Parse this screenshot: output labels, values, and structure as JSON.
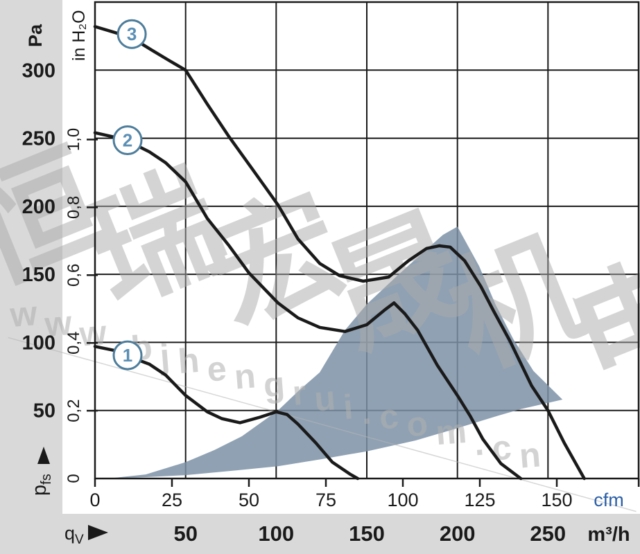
{
  "units": {
    "pressure_pa": "Pa",
    "pressure_inh2o": "in H₂O",
    "flow_cfm": "cfm",
    "flow_m3h": "m³/h",
    "p_main": "p",
    "p_sub": "fs",
    "q_main": "q",
    "q_sub": "V"
  },
  "watermark": {
    "cjk": "恒瑞宏晟机电",
    "url": "www.bjhengrui.com.cn"
  },
  "colors": {
    "background_gray": "#d9d9d9",
    "plot_white": "#ffffff",
    "line_black": "#1a1a1a",
    "region_blue": "#7b91a6",
    "circle_ring_blue": "#4d7d9b",
    "circle_number_blue": "#5b8fb5",
    "cfm_unit_blue": "#2b5fa7",
    "watermark_gray": "#ababab"
  },
  "chart_data": {
    "type": "line",
    "xlabel": "qV (airflow)",
    "ylabel": "pfs (static pressure)",
    "grid": true,
    "x_axes": [
      {
        "unit": "m³/h",
        "range": [
          0,
          300
        ],
        "ticks": [
          50,
          100,
          150,
          200,
          250
        ]
      },
      {
        "unit": "cfm",
        "range": [
          0,
          176.6
        ],
        "ticks": [
          0,
          25,
          50,
          75,
          100,
          125,
          150
        ],
        "extra_tick": 176.6,
        "cfm_to_m3h": 1.69901
      }
    ],
    "y_axes": [
      {
        "unit": "Pa",
        "range": [
          0,
          350
        ],
        "ticks": [
          300,
          250,
          200,
          150,
          100,
          50
        ]
      },
      {
        "unit": "in H₂O",
        "ticks": [
          {
            "label": "1,0",
            "pa": 249.0
          },
          {
            "label": "0,8",
            "pa": 199.2
          },
          {
            "label": "0,6",
            "pa": 149.4
          },
          {
            "label": "0,4",
            "pa": 99.6
          },
          {
            "label": "0,2",
            "pa": 49.8
          },
          {
            "label": "0",
            "pa": 0
          }
        ]
      }
    ],
    "x_grid_m3h": [
      50,
      100,
      150,
      200,
      250
    ],
    "y_grid_pa": [
      50,
      100,
      150,
      200,
      250,
      300
    ],
    "series": [
      {
        "name": "1",
        "label": {
          "text": "1",
          "q": 18,
          "pa": 90.5
        },
        "points": [
          [
            0,
            97
          ],
          [
            11,
            94
          ],
          [
            18,
            90
          ],
          [
            30,
            84
          ],
          [
            39,
            76
          ],
          [
            50,
            61
          ],
          [
            62,
            49
          ],
          [
            70,
            44
          ],
          [
            80,
            41
          ],
          [
            91,
            45
          ],
          [
            100,
            49
          ],
          [
            106,
            47
          ],
          [
            112,
            40
          ],
          [
            122,
            26
          ],
          [
            131,
            12
          ],
          [
            141,
            3
          ],
          [
            145,
            0
          ]
        ]
      },
      {
        "name": "2",
        "label": {
          "text": "2",
          "q": 18,
          "pa": 248.5
        },
        "points": [
          [
            0,
            254
          ],
          [
            10,
            251
          ],
          [
            18,
            248
          ],
          [
            30,
            240
          ],
          [
            39,
            232
          ],
          [
            50,
            218
          ],
          [
            62,
            191
          ],
          [
            74,
            171
          ],
          [
            85,
            151
          ],
          [
            101,
            129
          ],
          [
            112,
            118
          ],
          [
            124,
            111
          ],
          [
            138,
            108
          ],
          [
            150,
            113
          ],
          [
            160,
            124
          ],
          [
            165,
            129
          ],
          [
            171,
            121
          ],
          [
            178,
            109
          ],
          [
            189,
            83
          ],
          [
            200,
            61
          ],
          [
            207,
            46
          ],
          [
            214,
            29
          ],
          [
            224,
            11
          ],
          [
            235,
            0
          ]
        ]
      },
      {
        "name": "3",
        "label": {
          "text": "3",
          "q": 20.3,
          "pa": 326.5
        },
        "points": [
          [
            0,
            332
          ],
          [
            10,
            328
          ],
          [
            20,
            324
          ],
          [
            31,
            315
          ],
          [
            41,
            307
          ],
          [
            50,
            300
          ],
          [
            62,
            275
          ],
          [
            74,
            251
          ],
          [
            87,
            227
          ],
          [
            101,
            201
          ],
          [
            112,
            176
          ],
          [
            124,
            158
          ],
          [
            135,
            149
          ],
          [
            148,
            145
          ],
          [
            162,
            148
          ],
          [
            173,
            160
          ],
          [
            183,
            169
          ],
          [
            190,
            171
          ],
          [
            196,
            170
          ],
          [
            204,
            160
          ],
          [
            213,
            141
          ],
          [
            220,
            123
          ],
          [
            229,
            101
          ],
          [
            241,
            68
          ],
          [
            250,
            50
          ],
          [
            259,
            26
          ],
          [
            270,
            0
          ]
        ]
      }
    ],
    "operating_region": {
      "points": [
        [
          7,
          0
        ],
        [
          28,
          3
        ],
        [
          50,
          12
        ],
        [
          66,
          21
        ],
        [
          81,
          31
        ],
        [
          101,
          50
        ],
        [
          112,
          64
        ],
        [
          124,
          78
        ],
        [
          138,
          109
        ],
        [
          150,
          128
        ],
        [
          166,
          148
        ],
        [
          181,
          166
        ],
        [
          192,
          179
        ],
        [
          200,
          185
        ],
        [
          212,
          156
        ],
        [
          221,
          128
        ],
        [
          231,
          102
        ],
        [
          242,
          79
        ],
        [
          258,
          58
        ],
        [
          235,
          51
        ],
        [
          222,
          46
        ],
        [
          200,
          37
        ],
        [
          177,
          28
        ],
        [
          150,
          20
        ],
        [
          124,
          14
        ],
        [
          101,
          9
        ],
        [
          78,
          6
        ],
        [
          50,
          2.5
        ],
        [
          28,
          1
        ]
      ]
    }
  }
}
